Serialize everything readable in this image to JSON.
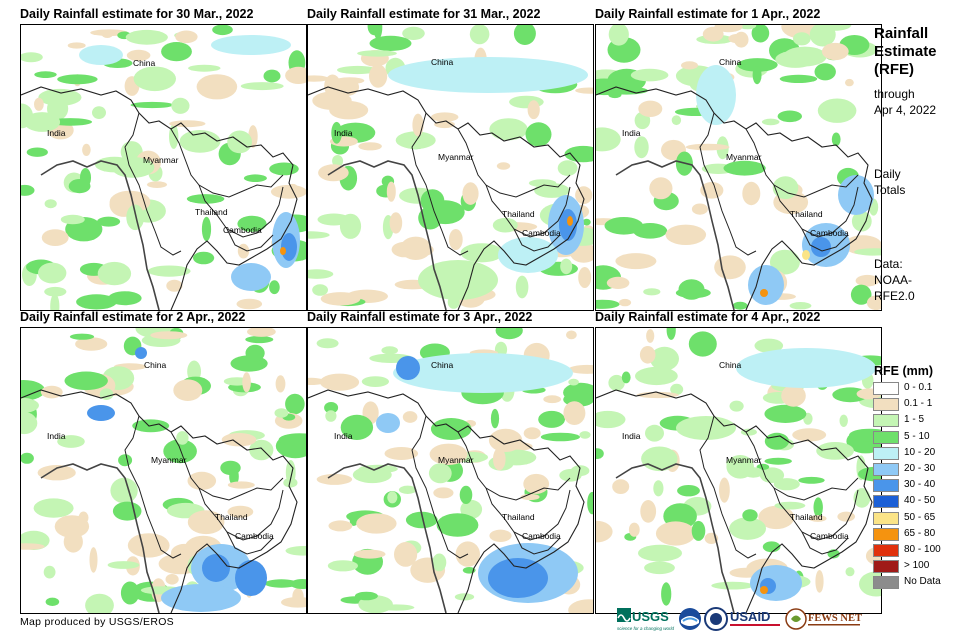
{
  "panels": [
    {
      "title": "Daily Rainfall estimate for 30 Mar., 2022",
      "labels": {
        "china": "China",
        "india": "India",
        "myanmar": "Myanmar",
        "thailand": "Thailand",
        "cambodia": "Cambodia"
      }
    },
    {
      "title": "Daily Rainfall estimate for 31 Mar., 2022",
      "labels": {
        "china": "China",
        "india": "India",
        "myanmar": "Myanmar",
        "thailand": "Thailand",
        "cambodia": "Cambodia"
      }
    },
    {
      "title": "Daily Rainfall estimate for 1 Apr., 2022",
      "labels": {
        "china": "China",
        "india": "India",
        "myanmar": "Myanmar",
        "thailand": "Thailand",
        "cambodia": "Cambodia"
      }
    },
    {
      "title": "Daily Rainfall estimate for 2 Apr., 2022",
      "labels": {
        "china": "China",
        "india": "India",
        "myanmar": "Myanmar",
        "thailand": "Thailand",
        "cambodia": "Cambodia"
      }
    },
    {
      "title": "Daily Rainfall estimate for 3 Apr., 2022",
      "labels": {
        "china": "China",
        "india": "India",
        "myanmar": "Myanmar",
        "thailand": "Thailand",
        "cambodia": "Cambodia"
      }
    },
    {
      "title": "Daily Rainfall estimate for 4 Apr., 2022",
      "labels": {
        "china": "China",
        "india": "India",
        "myanmar": "Myanmar",
        "thailand": "Thailand",
        "cambodia": "Cambodia"
      }
    }
  ],
  "sidebar": {
    "title_line1": "Rainfall",
    "title_line2": "Estimate",
    "title_line3": "(RFE)",
    "through_label": "through",
    "date": "Apr 4, 2022",
    "daily_line1": "Daily",
    "daily_line2": "Totals",
    "data_line1": "Data:",
    "data_line2": "NOAA-",
    "data_line3": "RFE2.0"
  },
  "legend": {
    "title": "RFE (mm)",
    "items": [
      {
        "label": "0 - 0.1",
        "color": "#ffffff"
      },
      {
        "label": "0.1 - 1",
        "color": "#f2dfc0"
      },
      {
        "label": "1 - 5",
        "color": "#c4f5b4"
      },
      {
        "label": "5 - 10",
        "color": "#6ee06b"
      },
      {
        "label": "10 - 20",
        "color": "#bdf0f5"
      },
      {
        "label": "20 - 30",
        "color": "#8fc9f5"
      },
      {
        "label": "30 - 40",
        "color": "#4a95ea"
      },
      {
        "label": "40 - 50",
        "color": "#1b5fd6"
      },
      {
        "label": "50 - 65",
        "color": "#fbe487"
      },
      {
        "label": "65 - 80",
        "color": "#f5930f"
      },
      {
        "label": "80 - 100",
        "color": "#e0310c"
      },
      {
        "label": "> 100",
        "color": "#a01a18"
      },
      {
        "label": "No Data",
        "color": "#8c8c8c"
      }
    ]
  },
  "footer": {
    "credit": "Map produced by USGS/EROS",
    "logos": [
      "USGS",
      "NOAA",
      "USAID",
      "FEWS NET"
    ],
    "usgs_tagline": "science for a changing world"
  }
}
